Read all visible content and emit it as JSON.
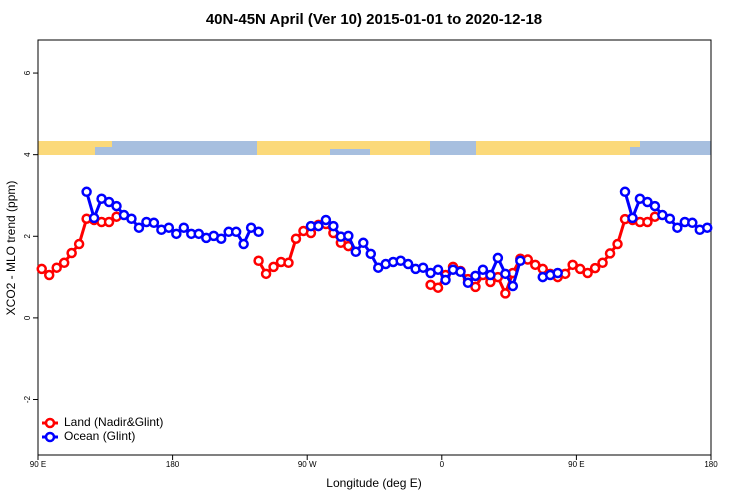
{
  "chart_data": {
    "type": "line",
    "title": "40N-45N April (Ver 10)   2015-01-01 to 2020-12-18",
    "x_label": "Longitude (deg E)",
    "y_label": "XCO2 - MLO trend (ppm)",
    "xlim": [
      90,
      540
    ],
    "xticks": [
      {
        "value": 90,
        "label": "90 E"
      },
      180,
      {
        "value": 270,
        "label": "90 W"
      },
      {
        "value": 360,
        "label": "0"
      },
      {
        "value": 450,
        "label": "90 E"
      },
      {
        "value": 540,
        "label": "180"
      }
    ],
    "ylim": [
      -3.36,
      6.81
    ],
    "yticks": [
      -2,
      0,
      2,
      4,
      6
    ],
    "legend": "bottom-left",
    "x": [
      92.5,
      97.5,
      102.5,
      107.5,
      112.5,
      117.5,
      122.5,
      127.5,
      132.5,
      137.5,
      142.5,
      147.5,
      152.5,
      157.5,
      162.5,
      167.5,
      172.5,
      177.5,
      182.5,
      187.5,
      192.5,
      197.5,
      202.5,
      207.5,
      212.5,
      217.5,
      222.5,
      227.5,
      232.5,
      237.5,
      242.5,
      247.5,
      252.5,
      257.5,
      262.5,
      267.5,
      272.5,
      277.5,
      282.5,
      287.5,
      292.5,
      297.5,
      302.5,
      307.5,
      312.5,
      317.5,
      322.5,
      327.5,
      332.5,
      337.5,
      342.5,
      347.5,
      352.5,
      357.5,
      362.5,
      367.5,
      372.5,
      377.5,
      382.5,
      387.5,
      392.5,
      397.5,
      402.5,
      407.5,
      412.5,
      417.5,
      422.5,
      427.5,
      432.5,
      437.5,
      442.5,
      447.5,
      452.5,
      457.5,
      462.5,
      467.5,
      472.5,
      477.5,
      482.5,
      487.5,
      492.5,
      497.5,
      502.5,
      507.5,
      512.5,
      517.5,
      522.5,
      527.5,
      532.5,
      537.5
    ],
    "series": [
      {
        "name": "Land (Nadir&Glint)",
        "color": "#ff0000",
        "values": [
          1.2,
          1.05,
          1.23,
          1.35,
          1.59,
          1.81,
          2.43,
          2.4,
          2.35,
          2.35,
          2.48,
          null,
          null,
          null,
          null,
          null,
          null,
          null,
          null,
          null,
          null,
          null,
          null,
          null,
          null,
          null,
          null,
          null,
          null,
          1.4,
          1.08,
          1.25,
          1.37,
          1.35,
          1.94,
          2.13,
          2.08,
          2.28,
          2.3,
          2.08,
          1.84,
          1.76,
          null,
          null,
          null,
          null,
          null,
          null,
          null,
          null,
          null,
          null,
          0.81,
          0.74,
          1.05,
          1.25,
          1.15,
          0.95,
          0.76,
          1.05,
          0.88,
          1.0,
          0.6,
          1.1,
          1.45,
          1.43,
          1.3,
          1.2,
          1.08,
          1.0,
          1.08,
          1.3,
          1.2,
          1.1,
          1.22,
          1.35,
          1.58,
          1.81,
          2.42,
          2.4,
          2.35,
          2.35,
          2.48,
          null,
          null,
          null,
          null,
          null,
          null,
          null
        ]
      },
      {
        "name": "Ocean (Glint)",
        "color": "#0000ff",
        "values": [
          null,
          null,
          null,
          null,
          null,
          null,
          3.09,
          2.45,
          2.92,
          2.84,
          2.74,
          2.52,
          2.43,
          2.21,
          2.35,
          2.33,
          2.16,
          2.21,
          2.06,
          2.21,
          2.06,
          2.06,
          1.96,
          2.01,
          1.94,
          2.11,
          2.11,
          1.81,
          2.21,
          2.11,
          null,
          null,
          null,
          null,
          null,
          null,
          2.25,
          2.25,
          2.4,
          2.25,
          1.99,
          2.01,
          1.62,
          1.84,
          1.57,
          1.23,
          1.32,
          1.37,
          1.4,
          1.32,
          1.2,
          1.23,
          1.1,
          1.18,
          0.93,
          1.18,
          1.13,
          0.86,
          1.03,
          1.18,
          1.05,
          1.47,
          1.08,
          0.78,
          1.4,
          null,
          null,
          1.0,
          1.05,
          1.1,
          null,
          null,
          null,
          null,
          null,
          null,
          null,
          null,
          3.09,
          2.45,
          2.92,
          2.84,
          2.74,
          2.52,
          2.43,
          2.21,
          2.35,
          2.33,
          2.16,
          2.21
        ]
      }
    ]
  }
}
